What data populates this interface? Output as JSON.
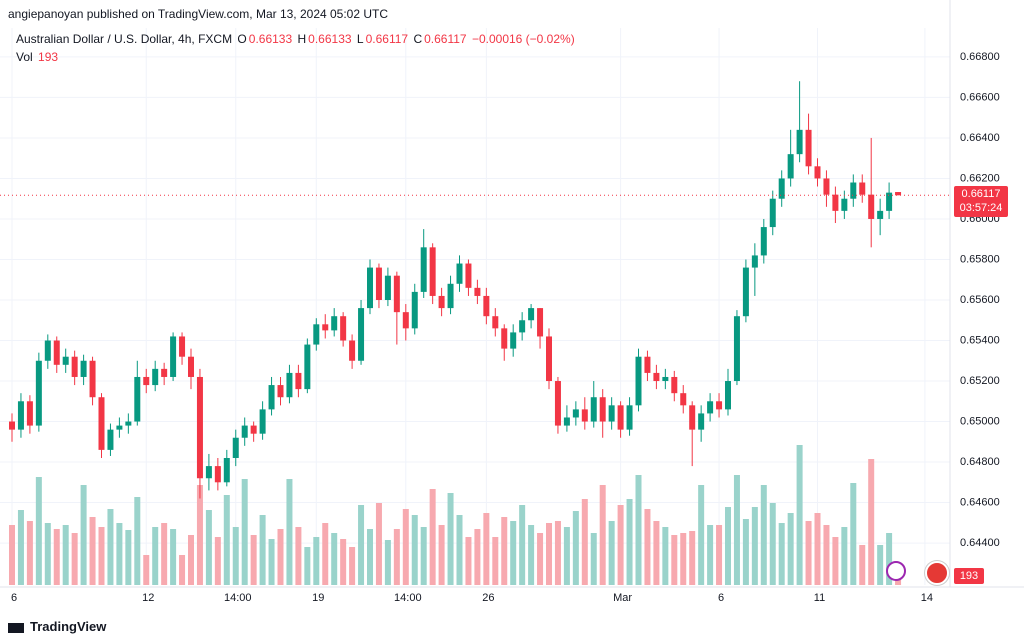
{
  "header": {
    "published": "angiepanoyan published on TradingView.com, Mar 13, 2024 05:02 UTC",
    "brand": "TradingView"
  },
  "legend": {
    "symbol": "Australian Dollar / U.S. Dollar, 4h, FXCM",
    "o": "O",
    "h": "H",
    "l": "L",
    "c": "C",
    "change": "−0.00016 (−0.02%)",
    "vol": "Vol",
    "countdown": "03:57:24"
  },
  "chart_data": {
    "type": "candlestick",
    "up_color": "#089981",
    "down_color": "#f23645",
    "volume_up_color": "#9ad3cb",
    "volume_down_color": "#f7a9af",
    "grid": true,
    "ylim": [
      0.64193,
      0.67081
    ],
    "yticks": [
      {
        "value": 0.644,
        "label": "0.64400"
      },
      {
        "value": 0.646,
        "label": "0.64600"
      },
      {
        "value": 0.648,
        "label": "0.64800"
      },
      {
        "value": 0.65,
        "label": "0.65000"
      },
      {
        "value": 0.652,
        "label": "0.65200"
      },
      {
        "value": 0.654,
        "label": "0.65400"
      },
      {
        "value": 0.656,
        "label": "0.65600"
      },
      {
        "value": 0.658,
        "label": "0.65800"
      },
      {
        "value": 0.66,
        "label": "0.66000"
      },
      {
        "value": 0.662,
        "label": "0.66200"
      },
      {
        "value": 0.664,
        "label": "0.66400"
      },
      {
        "value": 0.666,
        "label": "0.66600"
      },
      {
        "value": 0.668,
        "label": "0.66800"
      }
    ],
    "volume_lim": [
      0,
      1600
    ],
    "categories": [
      "6",
      null,
      null,
      null,
      null,
      null,
      null,
      null,
      null,
      null,
      null,
      null,
      null,
      null,
      null,
      "12",
      null,
      null,
      null,
      null,
      null,
      null,
      null,
      null,
      null,
      "14:00",
      null,
      null,
      null,
      null,
      null,
      null,
      null,
      null,
      "19",
      null,
      null,
      null,
      null,
      null,
      null,
      null,
      null,
      null,
      "14:00",
      null,
      null,
      null,
      null,
      null,
      null,
      null,
      null,
      "26",
      null,
      null,
      null,
      null,
      null,
      null,
      null,
      null,
      null,
      null,
      null,
      null,
      null,
      null,
      "Mar",
      null,
      null,
      null,
      null,
      null,
      null,
      null,
      null,
      null,
      null,
      "6",
      null,
      null,
      null,
      null,
      null,
      null,
      null,
      null,
      null,
      null,
      "11",
      null,
      null,
      null,
      null,
      null,
      null,
      null,
      null,
      null,
      null,
      null,
      "14",
      null
    ],
    "candles": [
      [
        0.65,
        0.6504,
        0.649,
        0.6496
      ],
      [
        0.6496,
        0.6514,
        0.6492,
        0.651
      ],
      [
        0.651,
        0.6513,
        0.6494,
        0.6498
      ],
      [
        0.6498,
        0.6534,
        0.6495,
        0.653
      ],
      [
        0.653,
        0.6543,
        0.6526,
        0.654
      ],
      [
        0.654,
        0.6542,
        0.6524,
        0.6528
      ],
      [
        0.6528,
        0.6536,
        0.6524,
        0.6532
      ],
      [
        0.6532,
        0.6535,
        0.6518,
        0.6522
      ],
      [
        0.6522,
        0.6533,
        0.6518,
        0.653
      ],
      [
        0.653,
        0.6532,
        0.6508,
        0.6512
      ],
      [
        0.6512,
        0.6514,
        0.6482,
        0.6486
      ],
      [
        0.6486,
        0.6499,
        0.6483,
        0.6496
      ],
      [
        0.6496,
        0.6502,
        0.6492,
        0.6498
      ],
      [
        0.6498,
        0.6504,
        0.6494,
        0.65
      ],
      [
        0.65,
        0.653,
        0.6498,
        0.6522
      ],
      [
        0.6522,
        0.6526,
        0.6514,
        0.6518
      ],
      [
        0.6518,
        0.653,
        0.6515,
        0.6526
      ],
      [
        0.6526,
        0.6529,
        0.6518,
        0.6522
      ],
      [
        0.6522,
        0.6544,
        0.652,
        0.6542
      ],
      [
        0.6542,
        0.6544,
        0.6528,
        0.6532
      ],
      [
        0.6532,
        0.6536,
        0.6516,
        0.6522
      ],
      [
        0.6522,
        0.6526,
        0.6462,
        0.6472
      ],
      [
        0.6472,
        0.6484,
        0.6466,
        0.6478
      ],
      [
        0.6478,
        0.6482,
        0.6466,
        0.647
      ],
      [
        0.647,
        0.6486,
        0.6468,
        0.6482
      ],
      [
        0.6482,
        0.6496,
        0.6478,
        0.6492
      ],
      [
        0.6492,
        0.6502,
        0.6488,
        0.6498
      ],
      [
        0.6498,
        0.65,
        0.649,
        0.6494
      ],
      [
        0.6494,
        0.651,
        0.6491,
        0.6506
      ],
      [
        0.6506,
        0.6522,
        0.6503,
        0.6518
      ],
      [
        0.6518,
        0.6522,
        0.6508,
        0.6512
      ],
      [
        0.6512,
        0.6528,
        0.6509,
        0.6524
      ],
      [
        0.6524,
        0.6528,
        0.6512,
        0.6516
      ],
      [
        0.6516,
        0.6541,
        0.6514,
        0.6538
      ],
      [
        0.6538,
        0.6551,
        0.6535,
        0.6548
      ],
      [
        0.6548,
        0.6553,
        0.6541,
        0.6545
      ],
      [
        0.6545,
        0.6556,
        0.6542,
        0.6552
      ],
      [
        0.6552,
        0.6554,
        0.6537,
        0.654
      ],
      [
        0.654,
        0.6543,
        0.6526,
        0.653
      ],
      [
        0.653,
        0.656,
        0.6528,
        0.6556
      ],
      [
        0.6556,
        0.658,
        0.6553,
        0.6576
      ],
      [
        0.6576,
        0.6578,
        0.6556,
        0.656
      ],
      [
        0.656,
        0.6576,
        0.6557,
        0.6572
      ],
      [
        0.6572,
        0.6574,
        0.6538,
        0.6554
      ],
      [
        0.6554,
        0.6558,
        0.654,
        0.6546
      ],
      [
        0.6546,
        0.6568,
        0.6543,
        0.6564
      ],
      [
        0.6564,
        0.6595,
        0.6561,
        0.6586
      ],
      [
        0.6586,
        0.6588,
        0.6558,
        0.6562
      ],
      [
        0.6562,
        0.6566,
        0.6552,
        0.6556
      ],
      [
        0.6556,
        0.6572,
        0.6553,
        0.6568
      ],
      [
        0.6568,
        0.6582,
        0.6564,
        0.6578
      ],
      [
        0.6578,
        0.658,
        0.6562,
        0.6566
      ],
      [
        0.6566,
        0.657,
        0.6558,
        0.6562
      ],
      [
        0.6562,
        0.6566,
        0.6548,
        0.6552
      ],
      [
        0.6552,
        0.6556,
        0.6542,
        0.6546
      ],
      [
        0.6546,
        0.6548,
        0.653,
        0.6536
      ],
      [
        0.6536,
        0.6548,
        0.6532,
        0.6544
      ],
      [
        0.6544,
        0.6554,
        0.654,
        0.655
      ],
      [
        0.655,
        0.6558,
        0.6546,
        0.6556
      ],
      [
        0.6556,
        0.6556,
        0.6536,
        0.6542
      ],
      [
        0.6542,
        0.6546,
        0.6516,
        0.652
      ],
      [
        0.652,
        0.6522,
        0.6494,
        0.6498
      ],
      [
        0.6498,
        0.6508,
        0.6495,
        0.6502
      ],
      [
        0.6502,
        0.651,
        0.6498,
        0.6506
      ],
      [
        0.6506,
        0.6512,
        0.6496,
        0.65
      ],
      [
        0.65,
        0.652,
        0.6497,
        0.6512
      ],
      [
        0.6512,
        0.6516,
        0.6492,
        0.65
      ],
      [
        0.65,
        0.6512,
        0.6496,
        0.6508
      ],
      [
        0.6508,
        0.651,
        0.6492,
        0.6496
      ],
      [
        0.6496,
        0.6512,
        0.6493,
        0.6508
      ],
      [
        0.6508,
        0.6536,
        0.6505,
        0.6532
      ],
      [
        0.6532,
        0.6535,
        0.652,
        0.6524
      ],
      [
        0.6524,
        0.6528,
        0.6516,
        0.652
      ],
      [
        0.652,
        0.6526,
        0.6516,
        0.6522
      ],
      [
        0.6522,
        0.6525,
        0.651,
        0.6514
      ],
      [
        0.6514,
        0.6518,
        0.6504,
        0.6508
      ],
      [
        0.6508,
        0.651,
        0.6478,
        0.6496
      ],
      [
        0.6496,
        0.6508,
        0.649,
        0.6504
      ],
      [
        0.6504,
        0.6514,
        0.65,
        0.651
      ],
      [
        0.651,
        0.6514,
        0.6502,
        0.6506
      ],
      [
        0.6506,
        0.6526,
        0.6503,
        0.652
      ],
      [
        0.652,
        0.6555,
        0.6518,
        0.6552
      ],
      [
        0.6552,
        0.658,
        0.6549,
        0.6576
      ],
      [
        0.6576,
        0.6588,
        0.6562,
        0.6582
      ],
      [
        0.6582,
        0.66,
        0.6578,
        0.6596
      ],
      [
        0.6596,
        0.6614,
        0.6592,
        0.661
      ],
      [
        0.661,
        0.6624,
        0.6606,
        0.662
      ],
      [
        0.662,
        0.6644,
        0.6616,
        0.6632
      ],
      [
        0.6632,
        0.6668,
        0.6628,
        0.6644
      ],
      [
        0.6644,
        0.6652,
        0.6622,
        0.6626
      ],
      [
        0.6626,
        0.663,
        0.6616,
        0.662
      ],
      [
        0.662,
        0.6624,
        0.6606,
        0.6612
      ],
      [
        0.6612,
        0.6616,
        0.6598,
        0.6604
      ],
      [
        0.6604,
        0.6614,
        0.66,
        0.661
      ],
      [
        0.661,
        0.6622,
        0.6606,
        0.6618
      ],
      [
        0.6618,
        0.6622,
        0.6608,
        0.6612
      ],
      [
        0.6612,
        0.664,
        0.6586,
        0.66
      ],
      [
        0.66,
        0.661,
        0.6592,
        0.6604
      ],
      [
        0.6604,
        0.6618,
        0.66,
        0.6613
      ],
      [
        0.66133,
        0.66133,
        0.66117,
        0.66117
      ],
      null,
      null,
      null,
      null
    ],
    "volume": [
      600,
      750,
      640,
      1080,
      620,
      560,
      600,
      520,
      1000,
      680,
      580,
      760,
      620,
      550,
      880,
      300,
      580,
      620,
      560,
      300,
      500,
      1000,
      750,
      480,
      900,
      580,
      1060,
      500,
      700,
      460,
      560,
      1060,
      580,
      380,
      480,
      620,
      520,
      460,
      380,
      800,
      560,
      820,
      450,
      560,
      760,
      700,
      580,
      960,
      600,
      920,
      700,
      480,
      560,
      720,
      480,
      680,
      640,
      800,
      600,
      520,
      620,
      640,
      580,
      740,
      860,
      520,
      1000,
      640,
      800,
      860,
      1100,
      760,
      640,
      580,
      500,
      520,
      540,
      1000,
      600,
      600,
      780,
      1100,
      660,
      780,
      1000,
      820,
      620,
      720,
      1400,
      640,
      720,
      600,
      480,
      580,
      1020,
      400,
      1260,
      400,
      520,
      193,
      null,
      null,
      null,
      null
    ]
  }
}
